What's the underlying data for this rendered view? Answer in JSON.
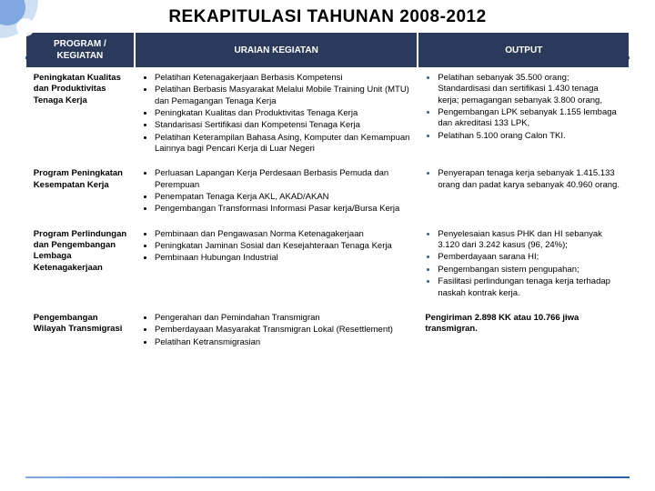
{
  "title": "REKAPITULASI TAHUNAN 2008-2012",
  "columns": [
    "PROGRAM / KEGIATAN",
    "URAIAN KEGIATAN",
    "OUTPUT"
  ],
  "rows": [
    {
      "program": "Peningkatan Kualitas dan Produktivitas Tenaga Kerja",
      "uraian": [
        "Pelatihan Ketenagakerjaan Berbasis Kompetensi",
        "Pelatihan Berbasis Masyarakat Melalui Mobile Training Unit (MTU) dan Pemagangan Tenaga Kerja",
        "Peningkatan Kualitas dan Produktivitas Tenaga Kerja",
        "Standarisasi Sertifikasi dan Kompetensi Tenaga Kerja",
        "Pelatihan Keterampilan Bahasa Asing, Komputer dan Kemampuan Lainnya bagi Pencari Kerja di Luar Negeri"
      ],
      "output": [
        "Pelatihan sebanyak 35.500 orang; Standardisasi dan sertifikasi 1.430 tenaga kerja; pemagangan sebanyak 3.800 orang,",
        "Pengembangan LPK sebanyak 1.155 lembaga dan akreditasi 133 LPK,",
        "Pelatihan 5.100 orang Calon TKI."
      ],
      "output_as_list": true
    },
    {
      "program": "Program Peningkatan Kesempatan Kerja",
      "uraian": [
        "Perluasan Lapangan Kerja Perdesaan Berbasis Pemuda dan Perempuan",
        "Penempatan Tenaga Kerja AKL, AKAD/AKAN",
        "Pengembangan Transformasi Informasi Pasar kerja/Bursa Kerja"
      ],
      "output": [
        "Penyerapan tenaga kerja sebanyak 1.415.133 orang dan padat karya sebanyak 40.960 orang."
      ],
      "output_as_list": true
    },
    {
      "program": "Program Perlindungan dan Pengembangan Lembaga Ketenagakerjaan",
      "uraian": [
        "Pembinaan dan Pengawasan Norma Ketenagakerjaan",
        "Peningkatan Jaminan Sosial dan Kesejahteraan Tenaga Kerja",
        "Pembinaan Hubungan Industrial"
      ],
      "output": [
        "Penyelesaian kasus PHK dan HI sebanyak 3.120 dari 3.242 kasus (96, 24%);",
        "Pemberdayaan sarana HI;",
        "Pengembangan sistem pengupahan;",
        "Fasilitasi perlindungan tenaga kerja terhadap naskah kontrak kerja."
      ],
      "output_as_list": true
    },
    {
      "program": "Pengembangan Wilayah Transmigrasi",
      "uraian": [
        "Pengerahan dan Pemindahan Transmigran",
        "Pemberdayaan Masyarakat Transmigran Lokal (Resettlement)",
        "Pelatihan Ketransmigrasian"
      ],
      "output_text": "Pengiriman 2.898 KK atau 10.766 jiwa transmigran.",
      "output_as_list": false
    }
  ],
  "colors": {
    "header_bg": "#2b3a5a",
    "accent": "#2b5fa3"
  }
}
